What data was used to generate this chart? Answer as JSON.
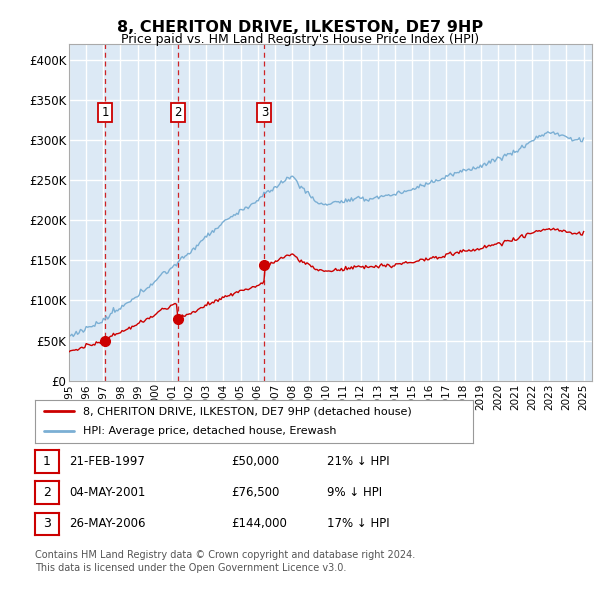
{
  "title": "8, CHERITON DRIVE, ILKESTON, DE7 9HP",
  "subtitle": "Price paid vs. HM Land Registry's House Price Index (HPI)",
  "ylabel_ticks": [
    "£0",
    "£50K",
    "£100K",
    "£150K",
    "£200K",
    "£250K",
    "£300K",
    "£350K",
    "£400K"
  ],
  "ytick_values": [
    0,
    50000,
    100000,
    150000,
    200000,
    250000,
    300000,
    350000,
    400000
  ],
  "ylim": [
    0,
    420000
  ],
  "xlim_start": 1995.0,
  "xlim_end": 2025.5,
  "bg_color": "#dce9f5",
  "grid_color": "#ffffff",
  "sale_dates": [
    1997.12,
    2001.34,
    2006.39
  ],
  "sale_prices": [
    50000,
    76500,
    144000
  ],
  "sale_labels": [
    "1",
    "2",
    "3"
  ],
  "legend_entries": [
    "8, CHERITON DRIVE, ILKESTON, DE7 9HP (detached house)",
    "HPI: Average price, detached house, Erewash"
  ],
  "table_rows": [
    [
      "1",
      "21-FEB-1997",
      "£50,000",
      "21% ↓ HPI"
    ],
    [
      "2",
      "04-MAY-2001",
      "£76,500",
      "9% ↓ HPI"
    ],
    [
      "3",
      "26-MAY-2006",
      "£144,000",
      "17% ↓ HPI"
    ]
  ],
  "footer": "Contains HM Land Registry data © Crown copyright and database right 2024.\nThis data is licensed under the Open Government Licence v3.0.",
  "line_color_property": "#cc0000",
  "line_color_hpi": "#7bafd4",
  "marker_color": "#cc0000",
  "dashed_line_color": "#cc0000"
}
